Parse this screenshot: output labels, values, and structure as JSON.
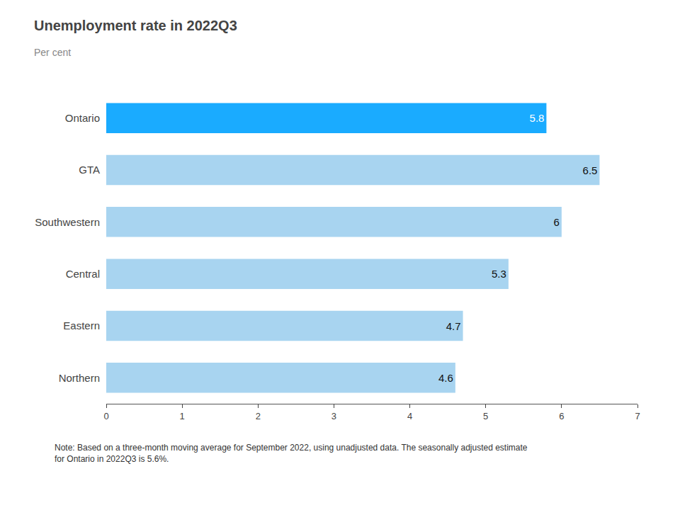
{
  "chart_data": {
    "type": "bar",
    "orientation": "horizontal",
    "title": "Unemployment rate in 2022Q3",
    "subtitle": "Per cent",
    "categories": [
      "Northern",
      "Eastern",
      "Central",
      "Southwestern",
      "GTA",
      "Ontario"
    ],
    "values": [
      4.6,
      4.7,
      5.3,
      6.0,
      6.5,
      5.8
    ],
    "colors": [
      "#a8d4f0",
      "#a8d4f0",
      "#a8d4f0",
      "#a8d4f0",
      "#a8d4f0",
      "#1aabff"
    ],
    "xlim": [
      0,
      7
    ],
    "xticks": [
      0,
      1,
      2,
      3,
      4,
      5,
      6,
      7
    ],
    "grid": false,
    "data_labels": true,
    "annotations": [
      "Note: Based on a three-month moving average for September 2022, using unadjusted data. The seasonally adjusted estimate\nfor Ontario in 2022Q3 is 5.6%."
    ]
  }
}
